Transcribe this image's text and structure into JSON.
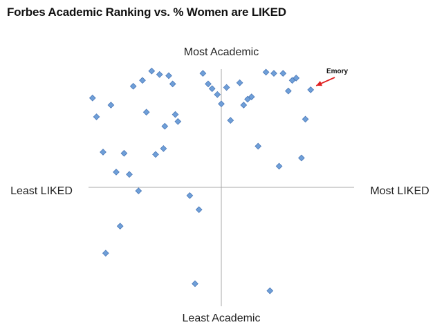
{
  "title": "Forbes Academic Ranking vs. % Women are LIKED",
  "chart_data": {
    "type": "scatter",
    "title": "Forbes Academic Ranking vs. % Women are LIKED",
    "x_axis_labels": {
      "negative": "Least LIKED",
      "positive": "Most LIKED"
    },
    "y_axis_labels": {
      "positive": "Most Academic",
      "negative": "Least Academic"
    },
    "xlim": [
      -100,
      100
    ],
    "ylim": [
      -100,
      100
    ],
    "grid": false,
    "marker": "diamond",
    "marker_color": "#6f9fd8",
    "marker_edge_color": "#4a78b8",
    "annotation": {
      "label": "Emory",
      "x": 68,
      "y": 83,
      "arrow_color": "#e02020",
      "label_color": "#111111"
    },
    "points": [
      {
        "x": -98,
        "y": 76
      },
      {
        "x": -95,
        "y": 60
      },
      {
        "x": -90,
        "y": 30
      },
      {
        "x": -88,
        "y": -56
      },
      {
        "x": -84,
        "y": 70
      },
      {
        "x": -80,
        "y": 13
      },
      {
        "x": -77,
        "y": -33
      },
      {
        "x": -74,
        "y": 29
      },
      {
        "x": -70,
        "y": 11
      },
      {
        "x": -67,
        "y": 86
      },
      {
        "x": -63,
        "y": -3
      },
      {
        "x": -60,
        "y": 91
      },
      {
        "x": -57,
        "y": 64
      },
      {
        "x": -53,
        "y": 99
      },
      {
        "x": -50,
        "y": 28
      },
      {
        "x": -47,
        "y": 96
      },
      {
        "x": -44,
        "y": 33
      },
      {
        "x": -43,
        "y": 52
      },
      {
        "x": -40,
        "y": 95
      },
      {
        "x": -37,
        "y": 88
      },
      {
        "x": -35,
        "y": 62
      },
      {
        "x": -33,
        "y": 56
      },
      {
        "x": -24,
        "y": -7
      },
      {
        "x": -20,
        "y": -82
      },
      {
        "x": -17,
        "y": -19
      },
      {
        "x": -14,
        "y": 97
      },
      {
        "x": -10,
        "y": 88
      },
      {
        "x": -7,
        "y": 84
      },
      {
        "x": -3,
        "y": 79
      },
      {
        "x": 0,
        "y": 71
      },
      {
        "x": 4,
        "y": 85
      },
      {
        "x": 7,
        "y": 57
      },
      {
        "x": 14,
        "y": 89
      },
      {
        "x": 17,
        "y": 70
      },
      {
        "x": 20,
        "y": 75
      },
      {
        "x": 23,
        "y": 77
      },
      {
        "x": 28,
        "y": 35
      },
      {
        "x": 34,
        "y": 98
      },
      {
        "x": 37,
        "y": -88
      },
      {
        "x": 40,
        "y": 97
      },
      {
        "x": 44,
        "y": 18
      },
      {
        "x": 47,
        "y": 97
      },
      {
        "x": 51,
        "y": 82
      },
      {
        "x": 54,
        "y": 91
      },
      {
        "x": 57,
        "y": 93
      },
      {
        "x": 61,
        "y": 25
      },
      {
        "x": 64,
        "y": 58
      },
      {
        "x": 68,
        "y": 83
      }
    ]
  }
}
